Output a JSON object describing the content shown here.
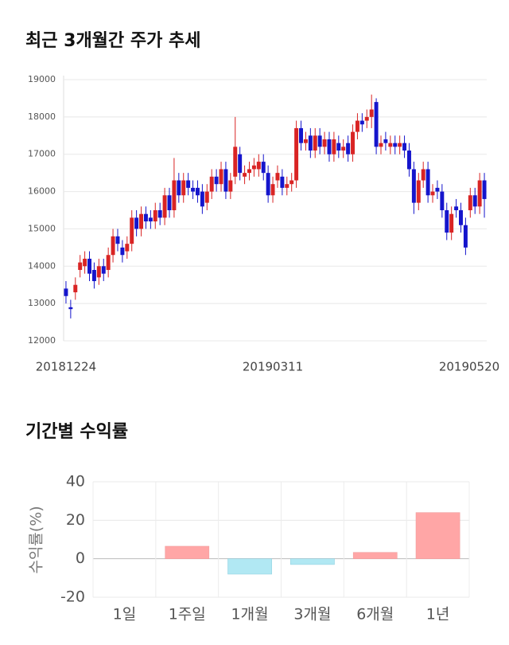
{
  "chart_data": [
    {
      "type": "candlestick",
      "title": "최근 3개월간 주가 추세",
      "categories": [
        "20181224",
        null,
        null,
        null,
        null,
        null,
        null,
        null,
        null,
        null,
        null,
        null,
        null,
        null,
        null,
        null,
        null,
        null,
        null,
        null,
        null,
        null,
        null,
        null,
        null,
        null,
        null,
        null,
        null,
        null,
        null,
        null,
        null,
        null,
        null,
        null,
        null,
        null,
        null,
        null,
        null,
        null,
        null,
        null,
        "20190311",
        null,
        null,
        null,
        null,
        null,
        null,
        null,
        null,
        null,
        null,
        null,
        null,
        null,
        null,
        null,
        null,
        null,
        null,
        null,
        null,
        null,
        null,
        null,
        null,
        null,
        null,
        null,
        null,
        null,
        null,
        null,
        null,
        null,
        null,
        null,
        null,
        null,
        null,
        null,
        null,
        null,
        null,
        null,
        null,
        "20190520"
      ],
      "open": [
        13400,
        12900,
        13300,
        13900,
        14000,
        14200,
        13900,
        13700,
        14000,
        13900,
        14300,
        14800,
        14500,
        14400,
        14600,
        15300,
        15000,
        15400,
        15300,
        15200,
        15500,
        15300,
        15900,
        15500,
        16300,
        15900,
        16300,
        16100,
        16100,
        16000,
        15700,
        16000,
        16400,
        16200,
        16600,
        16000,
        16400,
        17000,
        16400,
        16500,
        16600,
        16600,
        16800,
        16500,
        15900,
        16300,
        16400,
        16100,
        16200,
        16300,
        17700,
        17300,
        17500,
        17100,
        17500,
        17200,
        17400,
        17000,
        17300,
        17100,
        17300,
        17000,
        17600,
        17900,
        17900,
        18000,
        18400,
        17200,
        17400,
        17200,
        17300,
        17200,
        17300,
        17100,
        16600,
        15700,
        16300,
        16600,
        15900,
        16100,
        16000,
        15500,
        14900,
        15600,
        15500,
        15100,
        15500,
        15900,
        15600,
        16300
      ],
      "high": [
        13600,
        13100,
        13700,
        14300,
        14400,
        14400,
        14100,
        14200,
        14200,
        14500,
        15000,
        15000,
        14700,
        14800,
        15500,
        15500,
        15600,
        15600,
        15500,
        15700,
        15700,
        16100,
        16100,
        16900,
        16500,
        16500,
        16500,
        16300,
        16300,
        16200,
        16200,
        16600,
        16600,
        16800,
        16800,
        16500,
        18000,
        17200,
        16700,
        16800,
        16900,
        17000,
        17000,
        16700,
        16400,
        16700,
        16600,
        16400,
        16500,
        17900,
        17900,
        17600,
        17700,
        17700,
        17700,
        17600,
        17600,
        17600,
        17500,
        17400,
        17500,
        17800,
        18100,
        18100,
        18200,
        18600,
        18500,
        17500,
        17600,
        17500,
        17500,
        17500,
        17500,
        17300,
        16800,
        16500,
        16800,
        16800,
        16200,
        16300,
        16200,
        15700,
        15600,
        15800,
        15700,
        15300,
        16100,
        16100,
        16500,
        16500
      ],
      "low": [
        13000,
        12600,
        13100,
        13700,
        13800,
        13600,
        13400,
        13500,
        13600,
        13700,
        14100,
        14400,
        14100,
        14200,
        14400,
        14800,
        14800,
        15000,
        15000,
        15000,
        15100,
        15100,
        15300,
        15300,
        15700,
        15700,
        15900,
        15800,
        15700,
        15400,
        15500,
        15800,
        16000,
        16000,
        15800,
        15800,
        16200,
        16300,
        16200,
        16300,
        16400,
        16400,
        16300,
        15700,
        15700,
        16100,
        15900,
        15900,
        16000,
        16100,
        17100,
        17100,
        16900,
        16900,
        17000,
        17000,
        16800,
        16800,
        16900,
        16900,
        16800,
        16800,
        17400,
        17600,
        17700,
        17700,
        17000,
        17000,
        17100,
        17000,
        17000,
        17000,
        16900,
        16400,
        15400,
        15500,
        16100,
        15700,
        15700,
        15800,
        15300,
        14700,
        14700,
        15300,
        14900,
        14300,
        15300,
        15400,
        15400,
        15300
      ],
      "close": [
        13200,
        12850,
        13500,
        14100,
        14200,
        13800,
        13600,
        14000,
        13800,
        14300,
        14800,
        14600,
        14300,
        14600,
        15300,
        15000,
        15400,
        15200,
        15200,
        15500,
        15300,
        15900,
        15500,
        16300,
        15900,
        16300,
        16100,
        16000,
        15900,
        15600,
        16000,
        16400,
        16200,
        16600,
        16000,
        16300,
        17200,
        16500,
        16500,
        16600,
        16700,
        16800,
        16500,
        15900,
        16200,
        16500,
        16100,
        16200,
        16300,
        17700,
        17300,
        17400,
        17100,
        17500,
        17200,
        17400,
        17000,
        17400,
        17100,
        17200,
        17000,
        17600,
        17900,
        17800,
        18000,
        18200,
        17200,
        17300,
        17300,
        17300,
        17200,
        17300,
        17100,
        16600,
        15700,
        16300,
        16600,
        15900,
        16000,
        16000,
        15500,
        14900,
        15400,
        15500,
        15100,
        14500,
        15900,
        15600,
        16300,
        15800
      ],
      "up_color": "#d92424",
      "down_color": "#1515cc",
      "ylim": [
        12000,
        19000
      ],
      "yticks": [
        12000,
        13000,
        14000,
        15000,
        16000,
        17000,
        18000,
        19000
      ],
      "grid": true
    },
    {
      "type": "bar",
      "title": "기간별 수익률",
      "ylabel": "수익률(%)",
      "categories": [
        "1일",
        "1주일",
        "1개월",
        "3개월",
        "6개월",
        "1년"
      ],
      "values": [
        0,
        6.5,
        -8,
        -3,
        3.3,
        24
      ],
      "positive_color": "#ffa6a6",
      "negative_color": "#b1e8f3",
      "ylim": [
        -20,
        40
      ],
      "yticks": [
        -20,
        0,
        20,
        40
      ],
      "grid": true
    }
  ]
}
